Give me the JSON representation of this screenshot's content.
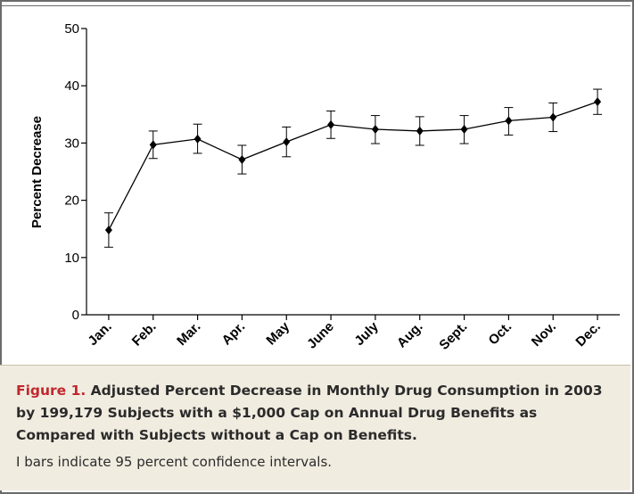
{
  "chart_data": {
    "type": "line",
    "ylabel": "Percent Decrease",
    "xlabel": "",
    "ylim": [
      0,
      50
    ],
    "yticks": [
      0,
      10,
      20,
      30,
      40,
      50
    ],
    "categories": [
      "Jan.",
      "Feb.",
      "Mar.",
      "Apr.",
      "May",
      "June",
      "July",
      "Aug.",
      "Sept.",
      "Oct.",
      "Nov.",
      "Dec."
    ],
    "series": [
      {
        "values": [
          14.8,
          29.7,
          30.7,
          27.1,
          30.2,
          33.2,
          32.4,
          32.1,
          32.4,
          33.9,
          34.5,
          37.2
        ],
        "ci_low": [
          11.8,
          27.3,
          28.2,
          24.6,
          27.6,
          30.8,
          29.9,
          29.6,
          29.9,
          31.4,
          32.0,
          35.0
        ],
        "ci_high": [
          17.8,
          32.1,
          33.3,
          29.6,
          32.8,
          35.6,
          34.8,
          34.6,
          34.8,
          36.2,
          37.0,
          39.4
        ]
      }
    ],
    "grid": false,
    "marker": "diamond"
  },
  "caption": {
    "figure_label": "Figure 1.",
    "title": "Adjusted Percent Decrease in Monthly Drug Consumption in 2003 by 199,179 Subjects with a $1,000 Cap on Annual Drug Benefits as Compared with Subjects without a Cap on Benefits.",
    "note": "I bars indicate 95 percent confidence intervals."
  },
  "colors": {
    "caption_background": "#f1ece0",
    "figure_label": "#c0272d",
    "line": "#000000",
    "frame": "#6b6b6b"
  }
}
